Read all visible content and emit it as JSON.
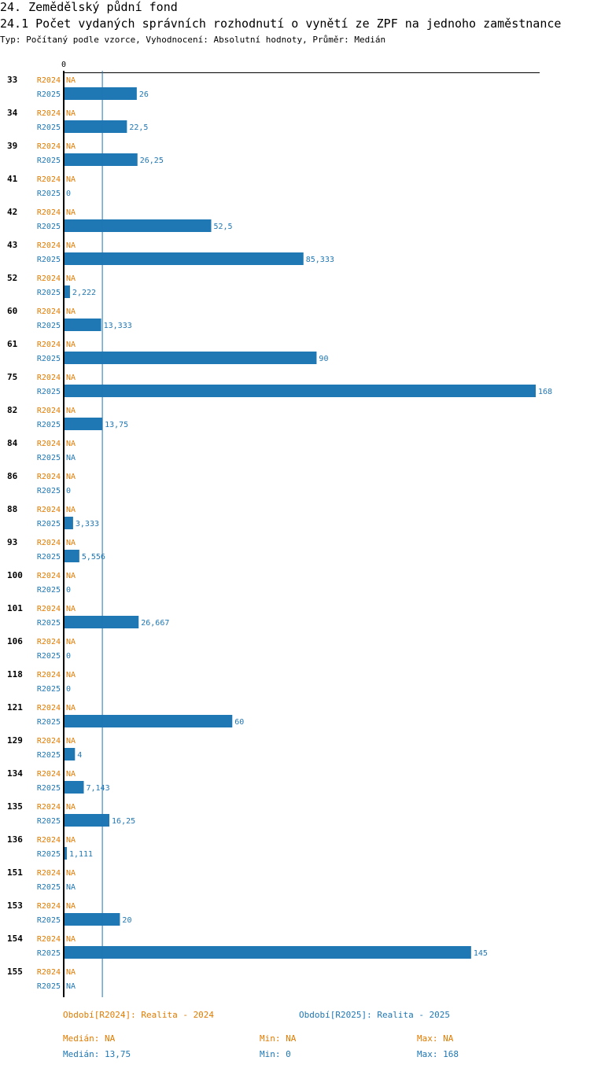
{
  "header": {
    "title": "24. Zemědělský půdní fond",
    "subtitle": "24.1 Počet vydaných správních rozhodnutí o vynětí ze ZPF na jednoho zaměstnance",
    "meta": "Typ: Počítaný podle vzorce, Vyhodnocení: Absolutní hodnoty, Průměr: Medián"
  },
  "colors": {
    "r2024": "#e07b00",
    "r2025": "#1f77b4",
    "axis": "#000000"
  },
  "chart_data": {
    "type": "bar",
    "orientation": "horizontal",
    "axis_zero_label": "0",
    "xlim": [
      0,
      168
    ],
    "series_names": [
      "R2024",
      "R2025"
    ],
    "rows": [
      {
        "id": "33",
        "r2024": "NA",
        "r2025": "26",
        "v2025": 26
      },
      {
        "id": "34",
        "r2024": "NA",
        "r2025": "22,5",
        "v2025": 22.5
      },
      {
        "id": "39",
        "r2024": "NA",
        "r2025": "26,25",
        "v2025": 26.25
      },
      {
        "id": "41",
        "r2024": "NA",
        "r2025": "0",
        "v2025": 0
      },
      {
        "id": "42",
        "r2024": "NA",
        "r2025": "52,5",
        "v2025": 52.5
      },
      {
        "id": "43",
        "r2024": "NA",
        "r2025": "85,333",
        "v2025": 85.333
      },
      {
        "id": "52",
        "r2024": "NA",
        "r2025": "2,222",
        "v2025": 2.222
      },
      {
        "id": "60",
        "r2024": "NA",
        "r2025": "13,333",
        "v2025": 13.333
      },
      {
        "id": "61",
        "r2024": "NA",
        "r2025": "90",
        "v2025": 90
      },
      {
        "id": "75",
        "r2024": "NA",
        "r2025": "168",
        "v2025": 168
      },
      {
        "id": "82",
        "r2024": "NA",
        "r2025": "13,75",
        "v2025": 13.75
      },
      {
        "id": "84",
        "r2024": "NA",
        "r2025": "NA",
        "v2025": null
      },
      {
        "id": "86",
        "r2024": "NA",
        "r2025": "0",
        "v2025": 0
      },
      {
        "id": "88",
        "r2024": "NA",
        "r2025": "3,333",
        "v2025": 3.333
      },
      {
        "id": "93",
        "r2024": "NA",
        "r2025": "5,556",
        "v2025": 5.556
      },
      {
        "id": "100",
        "r2024": "NA",
        "r2025": "0",
        "v2025": 0
      },
      {
        "id": "101",
        "r2024": "NA",
        "r2025": "26,667",
        "v2025": 26.667
      },
      {
        "id": "106",
        "r2024": "NA",
        "r2025": "0",
        "v2025": 0
      },
      {
        "id": "118",
        "r2024": "NA",
        "r2025": "0",
        "v2025": 0
      },
      {
        "id": "121",
        "r2024": "NA",
        "r2025": "60",
        "v2025": 60
      },
      {
        "id": "129",
        "r2024": "NA",
        "r2025": "4",
        "v2025": 4
      },
      {
        "id": "134",
        "r2024": "NA",
        "r2025": "7,143",
        "v2025": 7.143
      },
      {
        "id": "135",
        "r2024": "NA",
        "r2025": "16,25",
        "v2025": 16.25
      },
      {
        "id": "136",
        "r2024": "NA",
        "r2025": "1,111",
        "v2025": 1.111
      },
      {
        "id": "151",
        "r2024": "NA",
        "r2025": "NA",
        "v2025": null
      },
      {
        "id": "153",
        "r2024": "NA",
        "r2025": "20",
        "v2025": 20
      },
      {
        "id": "154",
        "r2024": "NA",
        "r2025": "145",
        "v2025": 145
      },
      {
        "id": "155",
        "r2024": "NA",
        "r2025": "NA",
        "v2025": null
      }
    ],
    "median_line_value": 13.75
  },
  "legend": {
    "period_2024": "Období[R2024]: Realita - 2024",
    "period_2025": "Období[R2025]: Realita - 2025",
    "median_2024": "Medián: NA",
    "min_2024": "Min: NA",
    "max_2024": "Max: NA",
    "median_2025": "Medián: 13,75",
    "min_2025": "Min: 0",
    "max_2025": "Max: 168"
  }
}
